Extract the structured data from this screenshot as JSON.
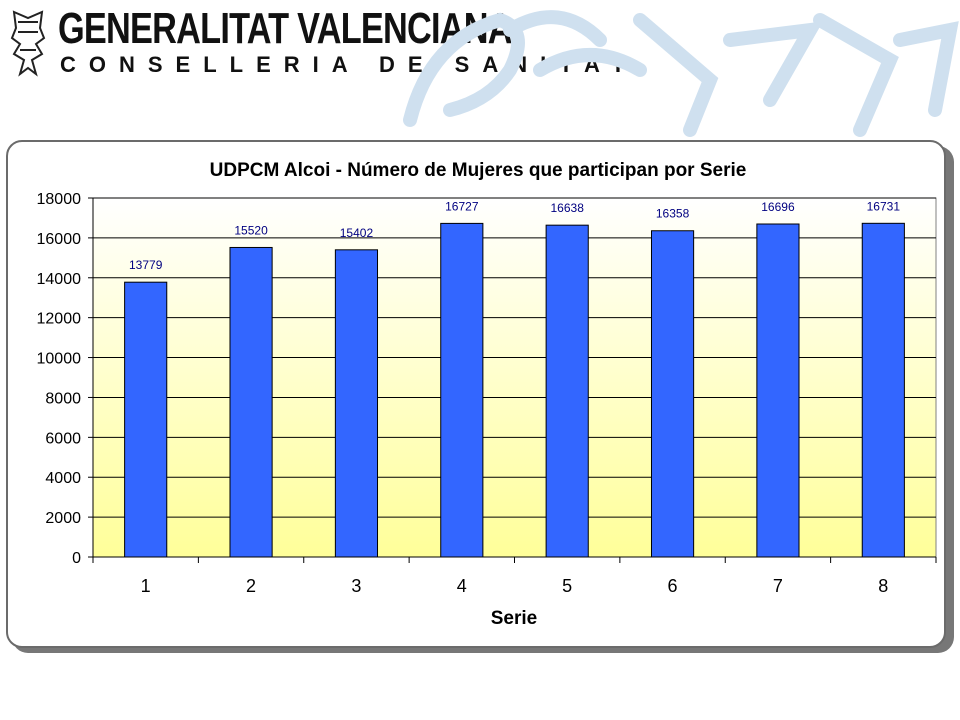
{
  "header": {
    "org_name": "GENERALITAT VALENCIANA",
    "org_sub": "CONSELLERIA DE SANITAT"
  },
  "colors": {
    "bar": "#3366ff",
    "bar_label": "#000080",
    "plot_top": "#ffffff",
    "plot_bottom": "#ffff99",
    "watermark": "#cfe0ef"
  },
  "chart_data": {
    "type": "bar",
    "title": "UDPCM Alcoi - Número de Mujeres que participan por Serie",
    "xlabel": "Serie",
    "ylabel": "",
    "categories": [
      "1",
      "2",
      "3",
      "4",
      "5",
      "6",
      "7",
      "8"
    ],
    "values": [
      13779,
      15520,
      15402,
      16727,
      16638,
      16358,
      16696,
      16731
    ],
    "data_labels": [
      "13779",
      "15520",
      "15402",
      "16727",
      "16638",
      "16358",
      "16696",
      "16731"
    ],
    "ylim": [
      0,
      18000
    ],
    "yticks": [
      "0",
      "2000",
      "4000",
      "6000",
      "8000",
      "10000",
      "12000",
      "14000",
      "16000",
      "18000"
    ],
    "grid": "horizontal",
    "legend": "none"
  }
}
